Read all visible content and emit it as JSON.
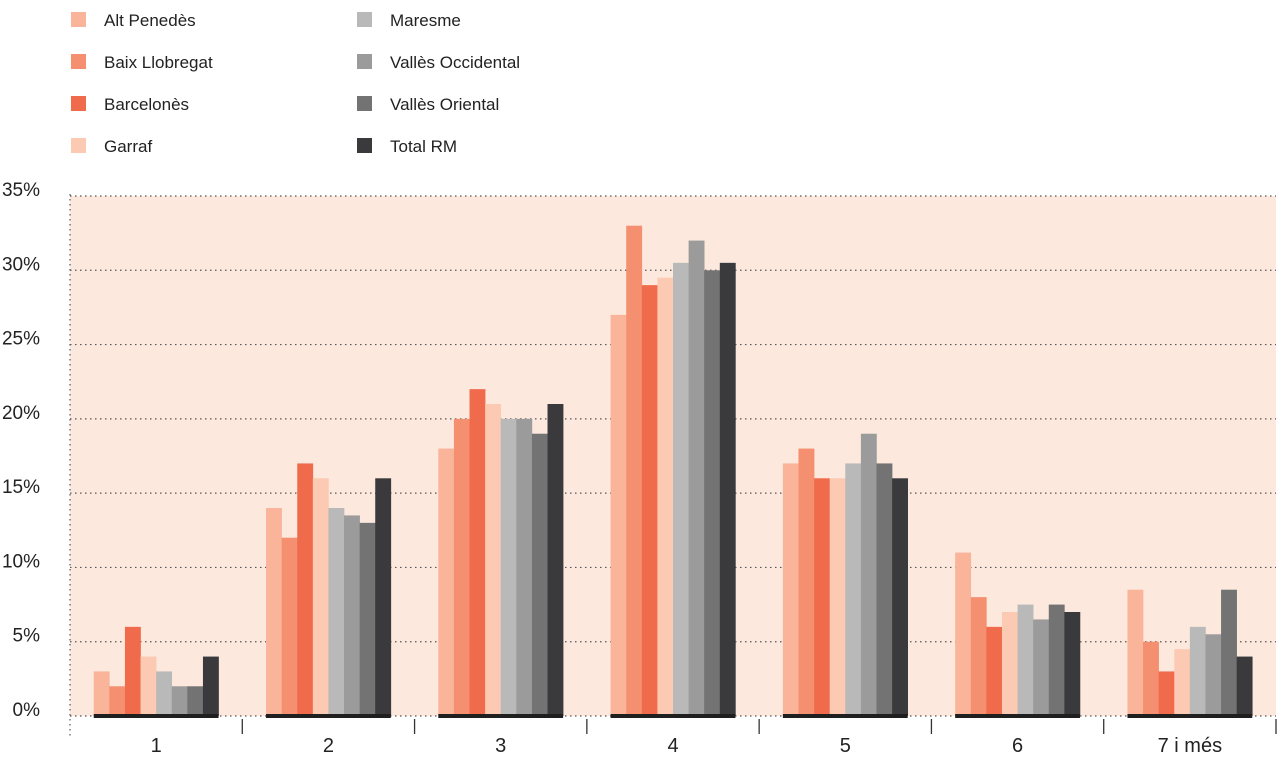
{
  "chart_data": {
    "type": "bar",
    "categories": [
      "1",
      "2",
      "3",
      "4",
      "5",
      "6",
      "7 i més"
    ],
    "series": [
      {
        "name": "Alt Penedès",
        "color": "#f9b49a",
        "values": [
          3,
          14,
          18,
          27,
          17,
          11,
          8.5
        ]
      },
      {
        "name": "Baix Llobregat",
        "color": "#f4906f",
        "values": [
          2,
          12,
          20,
          33,
          18,
          8,
          5
        ]
      },
      {
        "name": "Barcelonès",
        "color": "#ef6b4b",
        "values": [
          6,
          17,
          22,
          29,
          16,
          6,
          3
        ]
      },
      {
        "name": "Garraf",
        "color": "#fcc9b2",
        "values": [
          4,
          16,
          21,
          29.5,
          16,
          7,
          4.5
        ]
      },
      {
        "name": "Maresme",
        "color": "#b9b9b9",
        "values": [
          3,
          14,
          20,
          30.5,
          17,
          7.5,
          6
        ]
      },
      {
        "name": "Vallès Occidental",
        "color": "#9b9b9b",
        "values": [
          2,
          13.5,
          20,
          32,
          19,
          6.5,
          5.5
        ]
      },
      {
        "name": "Vallès Oriental",
        "color": "#737373",
        "values": [
          2,
          13,
          19,
          30,
          17,
          7.5,
          8.5
        ]
      },
      {
        "name": "Total RM",
        "color": "#3a3a3c",
        "values": [
          4,
          16,
          21,
          30.5,
          16,
          7,
          4
        ]
      }
    ],
    "ylim": [
      0,
      35
    ],
    "yticks": [
      0,
      5,
      10,
      15,
      20,
      25,
      30,
      35
    ],
    "ytick_labels": [
      "0%",
      "5%",
      "10%",
      "15%",
      "20%",
      "25%",
      "30%",
      "35%"
    ],
    "grid": true,
    "legend_position": "top-left",
    "plot_background": "#fde8de"
  }
}
